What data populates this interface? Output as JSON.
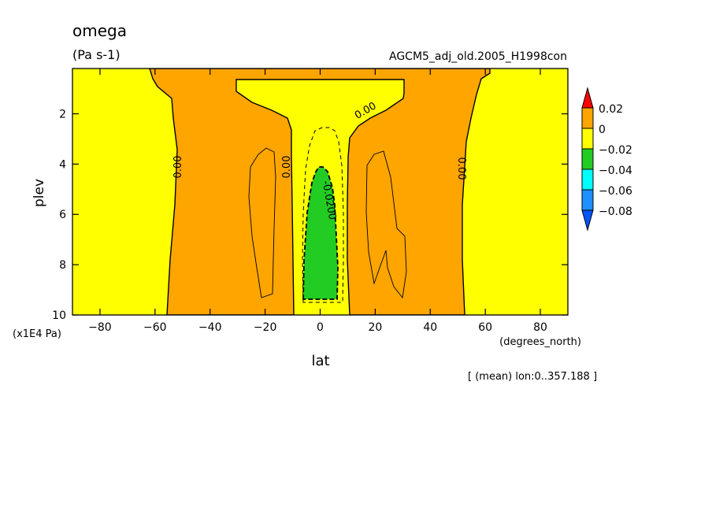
{
  "chart_data": {
    "type": "contour",
    "title": "omega",
    "units": "(Pa s-1)",
    "dataset": "AGCM5_adj_old.2005_H1998con",
    "xlabel": "lat",
    "xunits": "(degrees_north)",
    "ylabel": "plev",
    "yunits": "(x1E4 Pa)",
    "footnote": "[ (mean) lon:0..357.188 ]",
    "xlim": [
      -90,
      90
    ],
    "ylim": [
      10,
      0.2
    ],
    "xticks": [
      "-80",
      "-60",
      "-40",
      "-20",
      "0",
      "20",
      "40",
      "60",
      "80"
    ],
    "yticks": [
      "2",
      "4",
      "6",
      "8",
      "10"
    ],
    "colorbar": {
      "labels": [
        "0.02",
        "0",
        "−0.02",
        "−0.04",
        "−0.06",
        "−0.08"
      ],
      "colors": [
        "#ff0000",
        "#ffa500",
        "#ffff00",
        "#22cc22",
        "#00ffff",
        "#1e90ff",
        "#0055ff"
      ]
    },
    "contour_labels": [
      "0.00",
      "0.00",
      "0.00",
      "0.00",
      "-0.0200"
    ]
  }
}
